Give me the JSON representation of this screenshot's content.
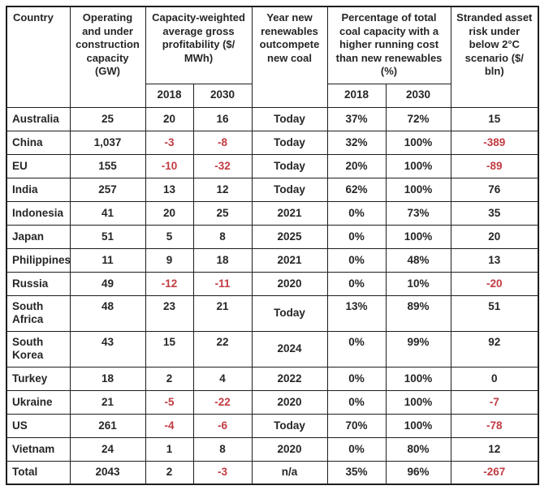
{
  "colors": {
    "text": "#262626",
    "negative_value": "#c23b42",
    "grid_border": "#1d1d1d",
    "background": "#ffffff"
  },
  "chart_data": {
    "type": "table",
    "header": {
      "country": "Country",
      "capacity": "Operating\nand under\nconstruction\ncapacity\n(GW)",
      "profitability_group": "Capacity-weighted\naverage gross\nprofitability ($/\nMWh)",
      "year": "Year new\nrenewables\noutcompete\nnew coal",
      "percentage_group": "Percentage of total\ncoal capacity with a\nhigher running cost\nthan new renewables\n(%)",
      "stranded": "Stranded asset\nrisk under\nbelow 2°C\nscenario ($/\nbln)",
      "sub_profit_2018": "2018",
      "sub_profit_2030": "2030",
      "sub_pct_2018": "2018",
      "sub_pct_2030": "2030"
    },
    "rows": [
      {
        "country": "Australia",
        "capacity": "25",
        "profit_2018": "20",
        "profit_2030": "16",
        "year": "Today",
        "pct_2018": "37%",
        "pct_2030": "72%",
        "stranded": "15"
      },
      {
        "country": "China",
        "capacity": "1,037",
        "profit_2018": "-3",
        "profit_2030": "-8",
        "year": "Today",
        "pct_2018": "32%",
        "pct_2030": "100%",
        "stranded": "-389"
      },
      {
        "country": "EU",
        "capacity": "155",
        "profit_2018": "-10",
        "profit_2030": "-32",
        "year": "Today",
        "pct_2018": "20%",
        "pct_2030": "100%",
        "stranded": "-89"
      },
      {
        "country": "India",
        "capacity": "257",
        "profit_2018": "13",
        "profit_2030": "12",
        "year": "Today",
        "pct_2018": "62%",
        "pct_2030": "100%",
        "stranded": "76"
      },
      {
        "country": "Indonesia",
        "capacity": "41",
        "profit_2018": "20",
        "profit_2030": "25",
        "year": "2021",
        "pct_2018": "0%",
        "pct_2030": "73%",
        "stranded": "35"
      },
      {
        "country": "Japan",
        "capacity": "51",
        "profit_2018": "5",
        "profit_2030": "8",
        "year": "2025",
        "pct_2018": "0%",
        "pct_2030": "100%",
        "stranded": "20"
      },
      {
        "country": "Philippines",
        "capacity": "11",
        "profit_2018": "9",
        "profit_2030": "18",
        "year": "2021",
        "pct_2018": "0%",
        "pct_2030": "48%",
        "stranded": "13"
      },
      {
        "country": "Russia",
        "capacity": "49",
        "profit_2018": "-12",
        "profit_2030": "-11",
        "year": "2020",
        "pct_2018": "0%",
        "pct_2030": "10%",
        "stranded": "-20"
      },
      {
        "country": "South\nAfrica",
        "two_line": true,
        "capacity": "48",
        "profit_2018": "23",
        "profit_2030": "21",
        "year": "Today",
        "pct_2018": "13%",
        "pct_2030": "89%",
        "stranded": "51"
      },
      {
        "country": "South\nKorea",
        "two_line": true,
        "capacity": "43",
        "profit_2018": "15",
        "profit_2030": "22",
        "year": "2024",
        "pct_2018": "0%",
        "pct_2030": "99%",
        "stranded": "92"
      },
      {
        "country": "Turkey",
        "capacity": "18",
        "profit_2018": "2",
        "profit_2030": "4",
        "year": "2022",
        "pct_2018": "0%",
        "pct_2030": "100%",
        "stranded": "0"
      },
      {
        "country": "Ukraine",
        "capacity": "21",
        "profit_2018": "-5",
        "profit_2030": "-22",
        "year": "2020",
        "pct_2018": "0%",
        "pct_2030": "100%",
        "stranded": "-7"
      },
      {
        "country": "US",
        "capacity": "261",
        "profit_2018": "-4",
        "profit_2030": "-6",
        "year": "Today",
        "pct_2018": "70%",
        "pct_2030": "100%",
        "stranded": "-78"
      },
      {
        "country": "Vietnam",
        "capacity": "24",
        "profit_2018": "1",
        "profit_2030": "8",
        "year": "2020",
        "pct_2018": "0%",
        "pct_2030": "80%",
        "stranded": "12"
      },
      {
        "country": "Total",
        "capacity": "2043",
        "profit_2018": "2",
        "profit_2030": "-3",
        "year": "n/a",
        "pct_2018": "35%",
        "pct_2030": "96%",
        "stranded": "-267"
      }
    ]
  }
}
